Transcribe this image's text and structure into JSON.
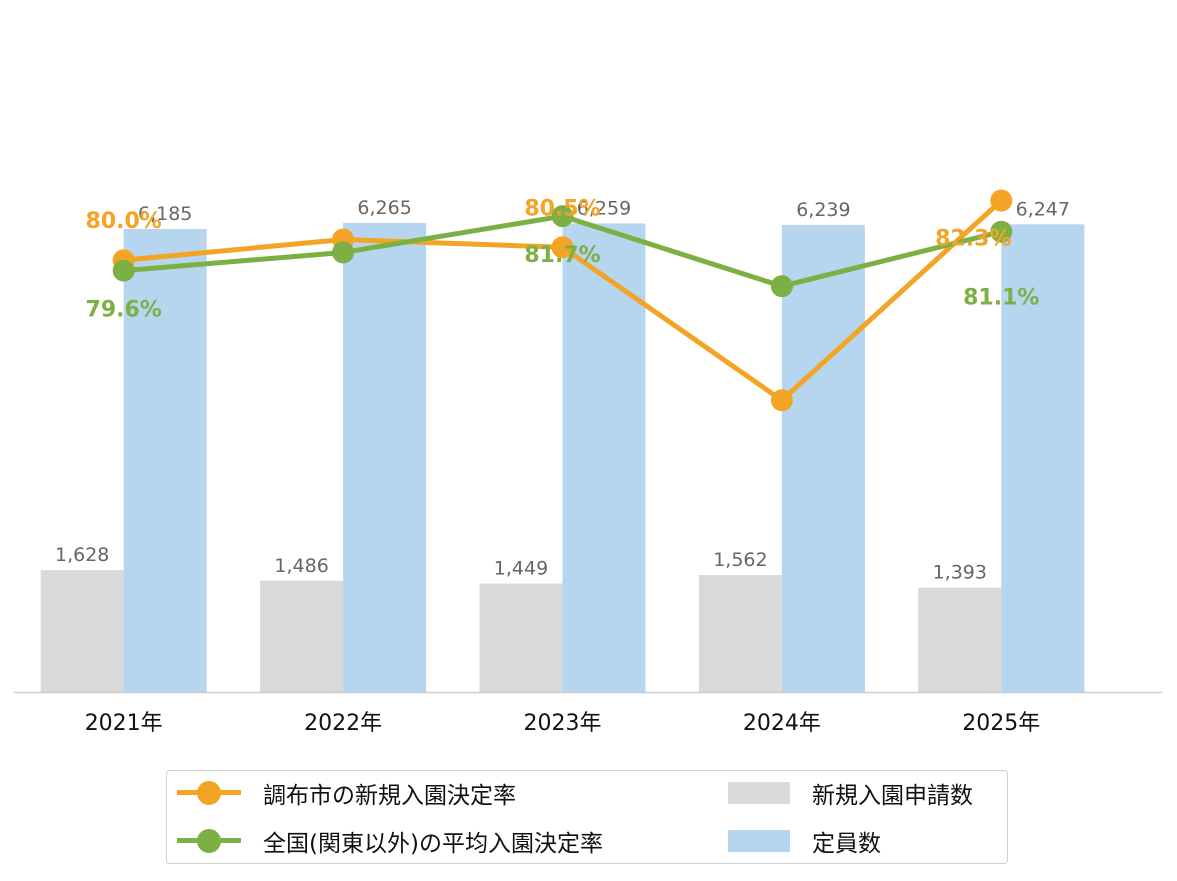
{
  "chart_data": {
    "type": "bar",
    "categories": [
      "2021年",
      "2022年",
      "2023年",
      "2024年",
      "2025年"
    ],
    "bar_series": [
      {
        "name": "新規入園申請数",
        "color": "#d9d9d9",
        "values": [
          1628,
          1486,
          1449,
          1562,
          1393
        ]
      },
      {
        "name": "定員数",
        "color": "#b6d5ef",
        "values": [
          6185,
          6265,
          6259,
          6239,
          6247
        ]
      }
    ],
    "line_series": [
      {
        "name": "調布市の新規入園決定率",
        "color": "#f4a425",
        "values": [
          80.0,
          80.8,
          80.5,
          74.6,
          82.3
        ],
        "labels": [
          "80.0%",
          "",
          "80.5%",
          "",
          "82.3%"
        ]
      },
      {
        "name": "全国(関東以外)の平均入園決定率",
        "color": "#7db044",
        "values": [
          79.6,
          80.3,
          81.7,
          79.0,
          81.1
        ],
        "labels": [
          "79.6%",
          "",
          "81.7%",
          "",
          "81.1%"
        ]
      }
    ],
    "bar_ylim": [
      0,
      9110
    ],
    "line_ylim": [
      63.35,
      89.65
    ],
    "legend_position": "bottom",
    "grid": false
  }
}
